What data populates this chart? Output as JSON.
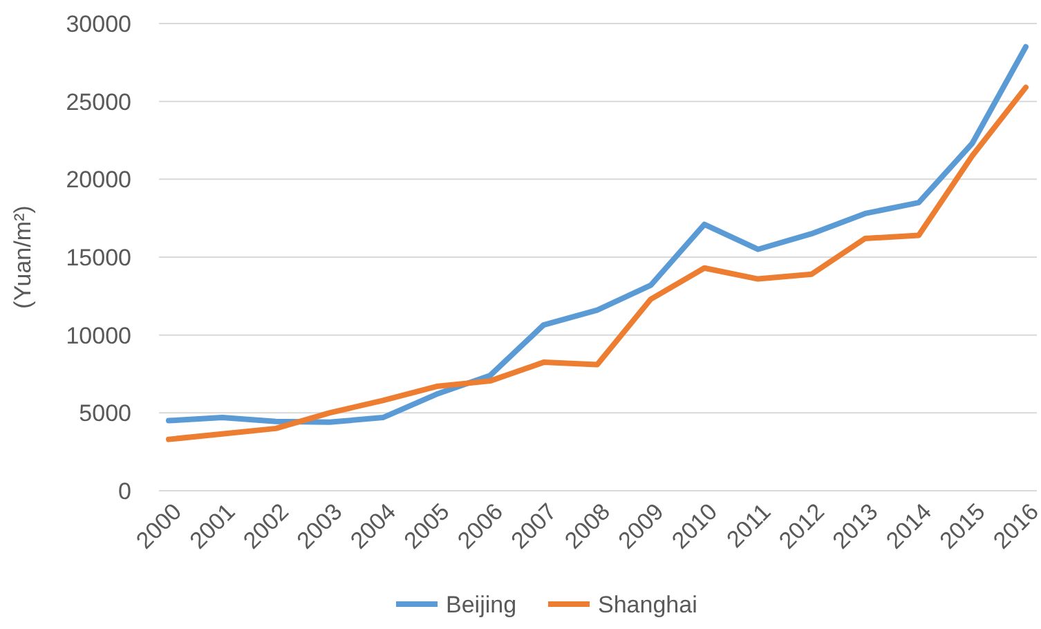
{
  "chart_data": {
    "type": "line",
    "ylabel": "(Yuan/m²)",
    "categories": [
      "2000",
      "2001",
      "2002",
      "2003",
      "2004",
      "2005",
      "2006",
      "2007",
      "2008",
      "2009",
      "2010",
      "2011",
      "2012",
      "2013",
      "2014",
      "2015",
      "2016"
    ],
    "series": [
      {
        "name": "Beijing",
        "color": "#5b9bd5",
        "values": [
          4500,
          4700,
          4450,
          4400,
          4700,
          6200,
          7400,
          10650,
          11600,
          13200,
          17100,
          15500,
          16500,
          17800,
          18500,
          22300,
          28500
        ]
      },
      {
        "name": "Shanghai",
        "color": "#ed7d31",
        "values": [
          3300,
          3650,
          4000,
          5000,
          5800,
          6700,
          7050,
          8250,
          8100,
          12300,
          14300,
          13600,
          13900,
          16200,
          16400,
          21500,
          25900
        ]
      }
    ],
    "ylim": [
      0,
      30000
    ],
    "yticks": [
      0,
      5000,
      10000,
      15000,
      20000,
      25000,
      30000
    ],
    "grid": "y",
    "legend": "bottom"
  }
}
